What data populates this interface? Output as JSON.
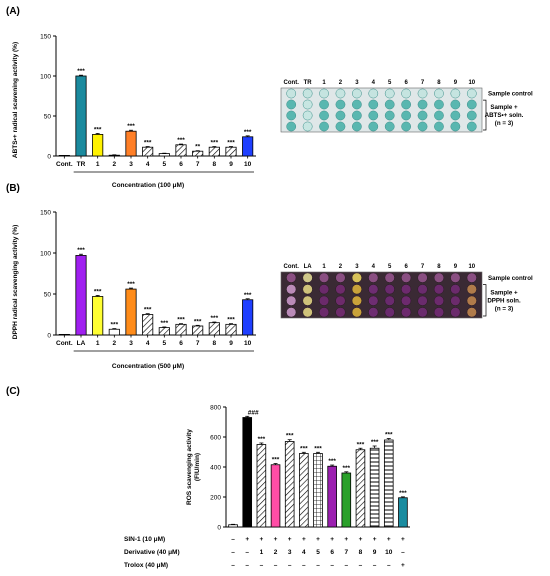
{
  "chart_data": [
    {
      "panel": "(A)",
      "type": "bar",
      "categories": [
        "Cont.",
        "TR",
        "1",
        "2",
        "3",
        "4",
        "5",
        "6",
        "7",
        "8",
        "9",
        "10"
      ],
      "values": [
        0,
        100,
        27,
        1,
        31,
        11,
        3,
        14,
        6,
        11,
        11,
        24
      ],
      "errors": [
        0,
        1,
        1.2,
        0.5,
        1.2,
        0.8,
        0.5,
        0.9,
        0.6,
        0.8,
        0.8,
        1.2
      ],
      "significance": [
        "",
        "***",
        "***",
        "",
        "***",
        "***",
        "",
        "***",
        "**",
        "***",
        "***",
        "***"
      ],
      "ylabel": "ABTS•+ radical scavening activity (%)",
      "yticks": [
        "0",
        "50",
        "100",
        "150"
      ],
      "ylim": [
        0,
        150
      ],
      "concentration": "Concentration (100 μM)",
      "colors": [
        "#ffffff",
        "#1b8a9e",
        "#fff200",
        "#ffffff",
        "#ff7f27",
        "hatch",
        "#ffffff",
        "hatch",
        "hatch",
        "hatch",
        "hatch",
        "#1f3fff"
      ],
      "plate": {
        "headers": [
          "Cont.",
          "TR",
          "1",
          "2",
          "3",
          "4",
          "5",
          "6",
          "7",
          "8",
          "9",
          "10"
        ],
        "labels": [
          "Sample control",
          "Sample +",
          "ABTS•+ soln.",
          "(n = 3)"
        ]
      }
    },
    {
      "panel": "(B)",
      "type": "bar",
      "categories": [
        "Cont.",
        "LA",
        "1",
        "2",
        "3",
        "4",
        "5",
        "6",
        "7",
        "8",
        "9",
        "10"
      ],
      "values": [
        0,
        97,
        47,
        7,
        56,
        25,
        9,
        13,
        11,
        15,
        13,
        43
      ],
      "errors": [
        0,
        1.5,
        1.2,
        0.8,
        1.2,
        1,
        0.8,
        0.8,
        0.8,
        0.8,
        0.8,
        1.2
      ],
      "significance": [
        "",
        "***",
        "***",
        "***",
        "***",
        "***",
        "***",
        "***",
        "***",
        "***",
        "***",
        "***"
      ],
      "ylabel": "DPPH radical scavenging activity (%)",
      "yticks": [
        "0",
        "50",
        "100",
        "150"
      ],
      "ylim": [
        0,
        150
      ],
      "concentration": "Concentration (500 μM)",
      "colors": [
        "#ffffff",
        "#a020f0",
        "#ffff33",
        "#ffffff",
        "#ff8c1a",
        "hatch",
        "hatch",
        "hatch",
        "hatch",
        "hatch",
        "hatch",
        "#1f3fff"
      ],
      "plate": {
        "headers": [
          "Cont.",
          "LA",
          "1",
          "2",
          "3",
          "4",
          "5",
          "6",
          "7",
          "8",
          "9",
          "10"
        ],
        "labels": [
          "Sample control",
          "Sample +",
          "DPPH soln.",
          "(n = 3)"
        ]
      }
    },
    {
      "panel": "(C)",
      "type": "bar",
      "values": [
        15,
        730,
        550,
        415,
        570,
        490,
        490,
        405,
        360,
        515,
        525,
        580,
        195
      ],
      "errors": [
        3,
        8,
        10,
        8,
        12,
        8,
        8,
        8,
        8,
        10,
        15,
        10,
        6
      ],
      "significance": [
        "",
        "###",
        "***",
        "***",
        "***",
        "***",
        "***",
        "***",
        "***",
        "***",
        "***",
        "***",
        "***"
      ],
      "ylabel": "ROS scavenging activity",
      "ylabel2": "(FlU/min)",
      "yticks": [
        "0",
        "200",
        "400",
        "600",
        "800"
      ],
      "ylim": [
        0,
        800
      ],
      "colors": [
        "#ffffff",
        "#000000",
        "hatch",
        "#ff4da6",
        "hatch",
        "hatch",
        "grid",
        "#9b1fb0",
        "#2aa02a",
        "hatch",
        "stripes",
        "stripes",
        "#1a8ca0"
      ],
      "table": [
        {
          "label": "SIN-1 (10 μM)",
          "cells": [
            "–",
            "+",
            "+",
            "+",
            "+",
            "+",
            "+",
            "+",
            "+",
            "+",
            "+",
            "+",
            "+"
          ]
        },
        {
          "label": "Derivative (40 μM)",
          "cells": [
            "–",
            "–",
            "1",
            "2",
            "3",
            "4",
            "5",
            "6",
            "7",
            "8",
            "9",
            "10",
            "–"
          ]
        },
        {
          "label": "Trolox (40 μM)",
          "cells": [
            "–",
            "–",
            "–",
            "–",
            "–",
            "–",
            "–",
            "–",
            "–",
            "–",
            "–",
            "–",
            "+"
          ]
        }
      ]
    }
  ]
}
